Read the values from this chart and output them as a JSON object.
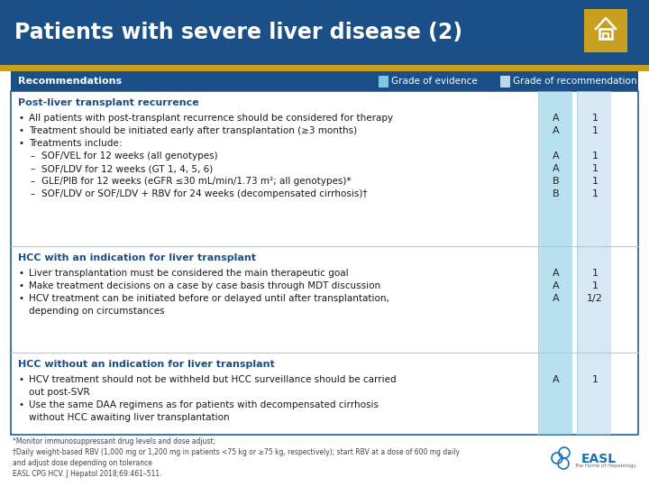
{
  "title": "Patients with severe liver disease (2)",
  "title_bg": "#1B4F87",
  "title_color": "#FFFFFF",
  "gold_color": "#C8A020",
  "header_bg": "#1B4F87",
  "header_color": "#FFFFFF",
  "col_ev_bg": "#7EC8E3",
  "col_rec_bg": "#BDD7EE",
  "white": "#FFFFFF",
  "dark_blue_text": "#1B4F87",
  "body_text": "#1a1a1a",
  "footer_text_color": "#444444",
  "sep_color": "#AACCDD",
  "border_color": "#2060A0",
  "sections": [
    {
      "header": "Post-liver transplant recurrence",
      "items": [
        {
          "indent": 0,
          "bullet": "•",
          "text": "All patients with post-transplant recurrence should be considered for therapy",
          "grade_ev": "A",
          "grade_rec": "1"
        },
        {
          "indent": 0,
          "bullet": "•",
          "text": "Treatment should be initiated early after transplantation (≥3 months)",
          "grade_ev": "A",
          "grade_rec": "1"
        },
        {
          "indent": 0,
          "bullet": "•",
          "text": "Treatments include:",
          "grade_ev": "",
          "grade_rec": ""
        },
        {
          "indent": 1,
          "bullet": "–",
          "text": "SOF/VEL for 12 weeks (all genotypes)",
          "grade_ev": "A",
          "grade_rec": "1"
        },
        {
          "indent": 1,
          "bullet": "–",
          "text": "SOF/LDV for 12 weeks (GT 1, 4, 5, 6)",
          "grade_ev": "A",
          "grade_rec": "1"
        },
        {
          "indent": 1,
          "bullet": "–",
          "text": "GLE/PIB for 12 weeks (eGFR ≤30 mL/min/1.73 m²; all genotypes)*",
          "grade_ev": "B",
          "grade_rec": "1"
        },
        {
          "indent": 1,
          "bullet": "–",
          "text": "SOF/LDV or SOF/LDV + RBV for 24 weeks (decompensated cirrhosis)†",
          "grade_ev": "B",
          "grade_rec": "1"
        }
      ]
    },
    {
      "header": "HCC with an indication for liver transplant",
      "items": [
        {
          "indent": 0,
          "bullet": "•",
          "text": "Liver transplantation must be considered the main therapeutic goal",
          "grade_ev": "A",
          "grade_rec": "1"
        },
        {
          "indent": 0,
          "bullet": "•",
          "text": "Make treatment decisions on a case by case basis through MDT discussion",
          "grade_ev": "A",
          "grade_rec": "1"
        },
        {
          "indent": 0,
          "bullet": "•",
          "text": "HCV treatment can be initiated before or delayed until after transplantation,",
          "grade_ev": "A",
          "grade_rec": "1/2"
        },
        {
          "indent": 0,
          "bullet": " ",
          "text": "depending on circumstances",
          "grade_ev": "",
          "grade_rec": ""
        }
      ]
    },
    {
      "header": "HCC without an indication for liver transplant",
      "items": [
        {
          "indent": 0,
          "bullet": "•",
          "text": "HCV treatment should not be withheld but HCC surveillance should be carried",
          "grade_ev": "A",
          "grade_rec": "1"
        },
        {
          "indent": 0,
          "bullet": " ",
          "text": "out post-SVR",
          "grade_ev": "",
          "grade_rec": ""
        },
        {
          "indent": 0,
          "bullet": "•",
          "text": "Use the same DAA regimens as for patients with decompensated cirrhosis",
          "grade_ev": "",
          "grade_rec": ""
        },
        {
          "indent": 0,
          "bullet": " ",
          "text": "without HCC awaiting liver transplantation",
          "grade_ev": "",
          "grade_rec": ""
        }
      ]
    }
  ],
  "footer_lines": [
    "*Monitor immunosuppressant drug levels and dose adjust;",
    "†Daily weight-based RBV (1,000 mg or 1,200 mg in patients <75 kg or ≥75 kg, respectively); start RBV at a dose of 600 mg daily",
    "and adjust dose depending on tolerance",
    "EASL CPG HCV. J Hepatol 2018;69:461–511."
  ]
}
